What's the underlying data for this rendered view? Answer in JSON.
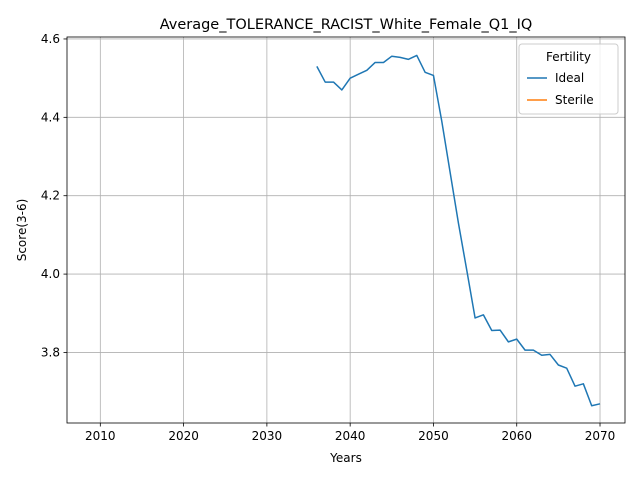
{
  "chart_data": {
    "type": "line",
    "title": "Average_TOLERANCE_RACIST_White_Female_Q1_IQ",
    "xlabel": "Years",
    "ylabel": "Score(3-6)",
    "xlim": [
      2006,
      2073
    ],
    "ylim": [
      3.62,
      4.605
    ],
    "x_ticks": [
      2010,
      2020,
      2030,
      2040,
      2050,
      2060,
      2070
    ],
    "y_ticks": [
      3.8,
      4.0,
      4.2,
      4.4,
      4.6
    ],
    "grid": true,
    "legend": {
      "title": "Fertility",
      "placement": "top-right"
    },
    "series": [
      {
        "name": "Ideal",
        "color": "#1f77b4",
        "x": [
          2036,
          2037,
          2038,
          2039,
          2040,
          2041,
          2042,
          2043,
          2044,
          2045,
          2046,
          2047,
          2048,
          2049,
          2050,
          2051,
          2052,
          2053,
          2054,
          2055,
          2056,
          2057,
          2058,
          2059,
          2060,
          2061,
          2062,
          2063,
          2064,
          2065,
          2066,
          2067,
          2068,
          2069,
          2070
        ],
        "y": [
          4.53,
          4.49,
          4.49,
          4.47,
          4.5,
          4.51,
          4.52,
          4.54,
          4.54,
          4.556,
          4.553,
          4.548,
          4.558,
          4.515,
          4.507,
          4.39,
          4.26,
          4.13,
          4.01,
          3.888,
          3.896,
          3.856,
          3.857,
          3.827,
          3.834,
          3.806,
          3.806,
          3.793,
          3.795,
          3.768,
          3.76,
          3.714,
          3.72,
          3.664,
          3.669
        ]
      },
      {
        "name": "Sterile",
        "color": "#ff7f0e",
        "x": [],
        "y": []
      }
    ]
  }
}
